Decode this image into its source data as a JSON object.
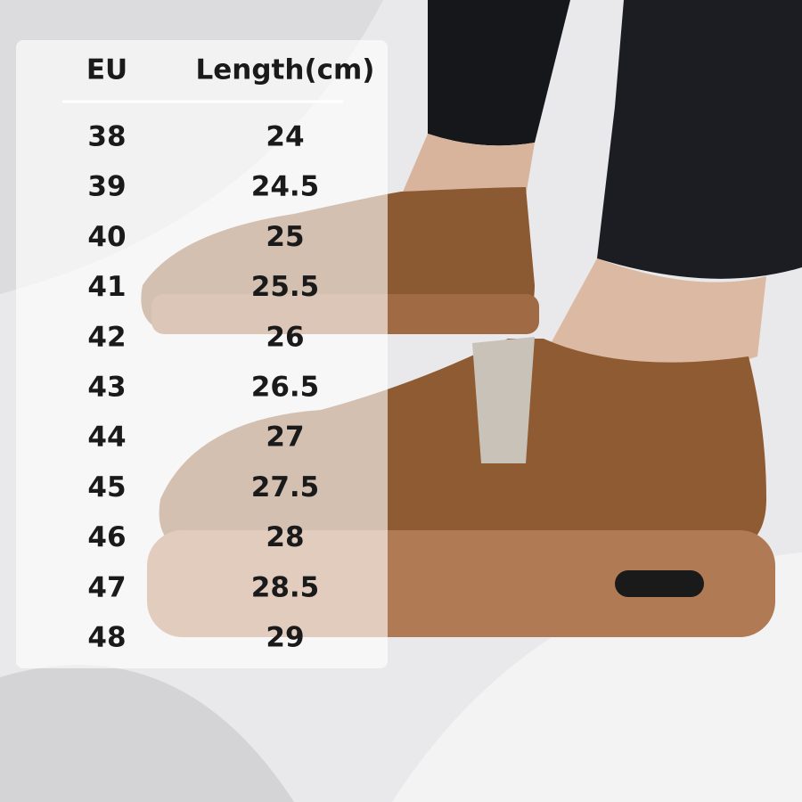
{
  "table": {
    "headers": [
      "EU",
      "Length(cm)"
    ],
    "rows": [
      [
        "38",
        "24"
      ],
      [
        "39",
        "24.5"
      ],
      [
        "40",
        "25"
      ],
      [
        "41",
        "25.5"
      ],
      [
        "42",
        "26"
      ],
      [
        "43",
        "26.5"
      ],
      [
        "44",
        "27"
      ],
      [
        "45",
        "27.5"
      ],
      [
        "46",
        "28"
      ],
      [
        "47",
        "28.5"
      ],
      [
        "48",
        "29"
      ]
    ]
  }
}
